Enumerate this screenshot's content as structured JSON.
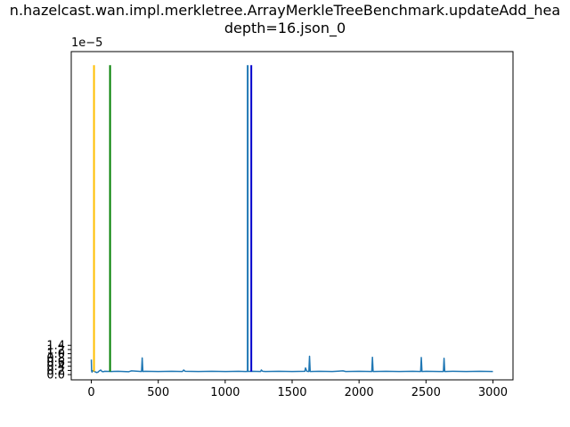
{
  "chart_data": {
    "type": "line",
    "title_lines": [
      "n.hazelcast.wan.impl.merkletree.ArrayMerkleTreeBenchmark.updateAdd_hea",
      "depth=16.json_0"
    ],
    "xlabel": "",
    "ylabel": "",
    "xlim": [
      -150,
      3150
    ],
    "ylim": [
      -2.5e-07,
      1.545e-05
    ],
    "x_ticks": [
      0,
      500,
      1000,
      1500,
      2000,
      2500,
      3000
    ],
    "y_ticks": [
      0.0,
      2e-07,
      4e-07,
      6e-07,
      8e-07,
      1e-06,
      1.2e-06,
      1.4e-06
    ],
    "y_tick_labels": [
      "0.0",
      "0.2",
      "0.4",
      "0.6",
      "0.8",
      "1.0",
      "1.2",
      "1.4"
    ],
    "y_offset_text": "1e−5",
    "y_tick_scale": 1e-05,
    "grid": false,
    "baseline": 1.5e-07,
    "series": [
      {
        "color": "#1f77b4",
        "x": [
          0,
          2,
          5,
          10,
          20,
          30,
          40,
          50,
          60,
          70,
          80,
          90,
          100,
          150,
          200,
          280,
          300,
          375,
          380,
          385,
          400,
          500,
          600,
          680,
          690,
          700,
          800,
          900,
          1000,
          1100,
          1150,
          1200,
          1265,
          1270,
          1280,
          1300,
          1400,
          1500,
          1595,
          1600,
          1610,
          1625,
          1630,
          1635,
          1700,
          1800,
          1880,
          1900,
          2000,
          2095,
          2100,
          2105,
          2200,
          2300,
          2400,
          2460,
          2465,
          2470,
          2500,
          2600,
          2630,
          2635,
          2640,
          2700,
          2800,
          2900,
          3000
        ],
        "y": [
          7.2e-07,
          1.8e-07,
          1.2e-07,
          1.9e-07,
          1.6e-07,
          1.3e-07,
          1e-07,
          1.2e-07,
          1.8e-07,
          2.2e-07,
          1.5e-07,
          1.4e-07,
          1.6e-07,
          1.5e-07,
          1.6e-07,
          1.4e-07,
          1.8e-07,
          1.5e-07,
          8e-07,
          1.5e-07,
          1.6e-07,
          1.5e-07,
          1.6e-07,
          1.5e-07,
          2.2e-07,
          1.6e-07,
          1.5e-07,
          1.6e-07,
          1.5e-07,
          1.6e-07,
          1.5e-07,
          1.6e-07,
          1.5e-07,
          2.2e-07,
          1.6e-07,
          1.5e-07,
          1.6e-07,
          1.5e-07,
          1.6e-07,
          3.2e-07,
          1.6e-07,
          1.5e-07,
          8.8e-07,
          1.5e-07,
          1.6e-07,
          1.5e-07,
          1.8e-07,
          1.5e-07,
          1.6e-07,
          1.5e-07,
          8.3e-07,
          1.5e-07,
          1.6e-07,
          1.5e-07,
          1.6e-07,
          1.5e-07,
          8.2e-07,
          1.5e-07,
          1.6e-07,
          1.5e-07,
          1.5e-07,
          7.8e-07,
          1.5e-07,
          1.6e-07,
          1.5e-07,
          1.6e-07,
          1.5e-07
        ]
      }
    ],
    "vlines": [
      {
        "x": 20,
        "ymin": 1.5e-07,
        "ymax": 1.48e-05,
        "color": "#ffbf00"
      },
      {
        "x": 140,
        "ymin": 1.5e-07,
        "ymax": 1.48e-05,
        "color": "#008000"
      },
      {
        "x": 1168,
        "ymin": 1.5e-07,
        "ymax": 1.48e-05,
        "color": "#1f77b4"
      },
      {
        "x": 1195,
        "ymin": 1.5e-07,
        "ymax": 1.48e-05,
        "color": "#0000cd"
      }
    ]
  }
}
